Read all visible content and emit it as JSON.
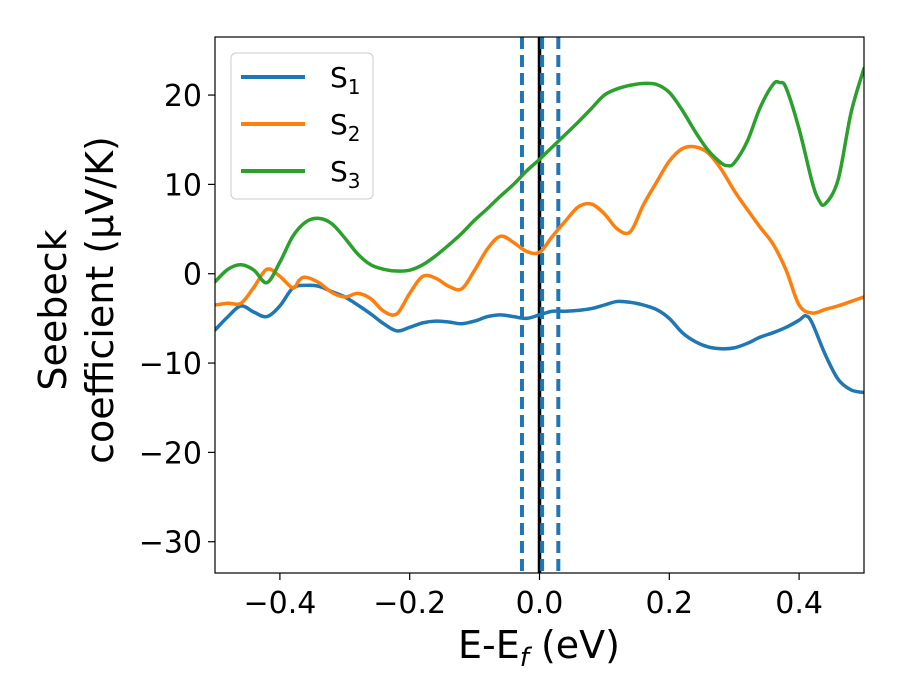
{
  "chart_data": {
    "type": "line",
    "xlabel": {
      "main": "E-E",
      "sub": "f",
      "suffix": " (eV)"
    },
    "ylabel": {
      "line1": "Seebeck",
      "line2": "coefficient  (μV/K)"
    },
    "xlim": [
      -0.5,
      0.5
    ],
    "ylim": [
      -33.5,
      26.5
    ],
    "xticks": [
      -0.4,
      -0.2,
      0.0,
      0.2,
      0.4
    ],
    "xtick_labels": [
      "−0.4",
      "−0.2",
      "0.0",
      "0.2",
      "0.4"
    ],
    "yticks": [
      -30,
      -20,
      -10,
      0,
      10,
      20
    ],
    "ytick_labels": [
      "−30",
      "−20",
      "−10",
      "0",
      "10",
      "20"
    ],
    "grid": false,
    "legend_position": "top-left",
    "vlines": [
      {
        "x": -0.027,
        "style": "dashed",
        "color": "#1f77b4"
      },
      {
        "x": 0.029,
        "style": "dashed",
        "color": "#1f77b4"
      },
      {
        "x": 0.0,
        "style": "solid",
        "color": "#000000"
      },
      {
        "x": 0.004,
        "style": "dashed",
        "color": "#1f77b4"
      }
    ],
    "series": [
      {
        "name": "S",
        "sub": "1",
        "color": "#1f77b4",
        "x": [
          -0.5,
          -0.48,
          -0.46,
          -0.44,
          -0.42,
          -0.4,
          -0.38,
          -0.36,
          -0.34,
          -0.32,
          -0.3,
          -0.28,
          -0.26,
          -0.24,
          -0.22,
          -0.2,
          -0.18,
          -0.16,
          -0.14,
          -0.12,
          -0.1,
          -0.08,
          -0.06,
          -0.04,
          -0.02,
          0.0,
          0.02,
          0.04,
          0.06,
          0.08,
          0.1,
          0.12,
          0.14,
          0.16,
          0.18,
          0.2,
          0.22,
          0.24,
          0.26,
          0.28,
          0.3,
          0.32,
          0.34,
          0.36,
          0.38,
          0.4,
          0.41,
          0.42,
          0.44,
          0.46,
          0.48,
          0.5
        ],
        "y": [
          -6.3,
          -4.8,
          -3.6,
          -4.3,
          -4.8,
          -3.6,
          -1.6,
          -1.3,
          -1.4,
          -2.0,
          -2.6,
          -3.5,
          -4.5,
          -5.6,
          -6.4,
          -6.0,
          -5.5,
          -5.3,
          -5.4,
          -5.6,
          -5.3,
          -4.8,
          -4.6,
          -4.8,
          -5.0,
          -4.6,
          -4.2,
          -4.2,
          -4.1,
          -3.9,
          -3.5,
          -3.1,
          -3.2,
          -3.5,
          -4.0,
          -5.0,
          -6.6,
          -7.6,
          -8.2,
          -8.4,
          -8.3,
          -7.8,
          -7.1,
          -6.6,
          -6.0,
          -5.2,
          -4.7,
          -5.5,
          -9.0,
          -11.8,
          -13.0,
          -13.3
        ]
      },
      {
        "name": "S",
        "sub": "2",
        "color": "#ff7f0e",
        "x": [
          -0.5,
          -0.48,
          -0.46,
          -0.44,
          -0.42,
          -0.4,
          -0.38,
          -0.37,
          -0.36,
          -0.34,
          -0.32,
          -0.3,
          -0.28,
          -0.26,
          -0.24,
          -0.22,
          -0.2,
          -0.18,
          -0.16,
          -0.14,
          -0.12,
          -0.1,
          -0.08,
          -0.06,
          -0.04,
          -0.02,
          0.0,
          0.02,
          0.04,
          0.06,
          0.08,
          0.1,
          0.12,
          0.14,
          0.16,
          0.18,
          0.2,
          0.22,
          0.24,
          0.26,
          0.28,
          0.3,
          0.32,
          0.34,
          0.36,
          0.38,
          0.4,
          0.42,
          0.44,
          0.46,
          0.48,
          0.5
        ],
        "y": [
          -3.5,
          -3.3,
          -3.3,
          -1.5,
          0.5,
          -0.3,
          -1.6,
          -0.7,
          -0.4,
          -1.0,
          -2.1,
          -2.6,
          -2.2,
          -2.8,
          -4.2,
          -4.5,
          -2.2,
          -0.3,
          -0.5,
          -1.4,
          -1.7,
          0.4,
          2.8,
          4.2,
          3.5,
          2.5,
          2.4,
          4.2,
          5.9,
          7.5,
          7.8,
          6.7,
          5.0,
          4.7,
          7.7,
          10.2,
          12.6,
          14.0,
          14.2,
          13.5,
          11.7,
          9.3,
          7.2,
          5.2,
          3.3,
          0.4,
          -3.5,
          -4.4,
          -4.0,
          -3.6,
          -3.1,
          -2.6
        ]
      },
      {
        "name": "S",
        "sub": "3",
        "color": "#2ca02c",
        "x": [
          -0.5,
          -0.48,
          -0.46,
          -0.44,
          -0.42,
          -0.4,
          -0.38,
          -0.36,
          -0.34,
          -0.32,
          -0.3,
          -0.28,
          -0.26,
          -0.24,
          -0.22,
          -0.2,
          -0.18,
          -0.16,
          -0.14,
          -0.12,
          -0.1,
          -0.08,
          -0.06,
          -0.04,
          -0.02,
          0.0,
          0.02,
          0.04,
          0.06,
          0.08,
          0.1,
          0.12,
          0.14,
          0.16,
          0.18,
          0.2,
          0.22,
          0.24,
          0.26,
          0.28,
          0.29,
          0.3,
          0.32,
          0.34,
          0.36,
          0.37,
          0.38,
          0.4,
          0.42,
          0.43,
          0.44,
          0.46,
          0.48,
          0.5
        ],
        "y": [
          -0.9,
          0.5,
          1.0,
          0.4,
          -1.0,
          1.3,
          4.2,
          5.8,
          6.2,
          5.6,
          4.0,
          2.2,
          1.0,
          0.5,
          0.3,
          0.4,
          1.0,
          2.0,
          3.2,
          4.5,
          6.0,
          7.3,
          8.7,
          10.0,
          11.5,
          12.8,
          14.2,
          15.6,
          17.0,
          18.5,
          20.0,
          20.7,
          21.1,
          21.3,
          21.2,
          20.3,
          18.3,
          15.9,
          13.8,
          12.4,
          12.1,
          12.4,
          14.8,
          18.6,
          21.2,
          21.4,
          20.8,
          16.2,
          10.3,
          8.3,
          7.8,
          10.5,
          18.0,
          23.0
        ]
      }
    ]
  }
}
